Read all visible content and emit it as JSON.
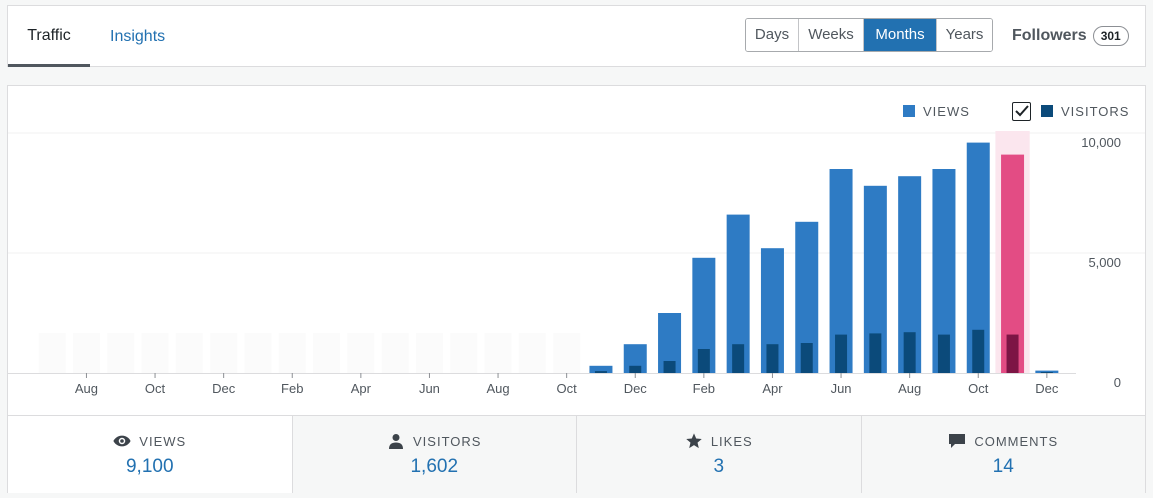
{
  "tabs": [
    {
      "label": "Traffic"
    },
    {
      "label": "Insights"
    }
  ],
  "periods": [
    {
      "label": "Days"
    },
    {
      "label": "Weeks"
    },
    {
      "label": "Months"
    },
    {
      "label": "Years"
    }
  ],
  "followers": {
    "label": "Followers",
    "count": "301"
  },
  "legend": {
    "views": "VIEWS",
    "visitors": "VISITORS"
  },
  "colors": {
    "accent": "#2271b1",
    "views_bar": "#2e7bc4",
    "visitors_bar": "#0b4a7a",
    "selected_views_bar": "#e34c84",
    "selected_visitors_bar": "#7d1545",
    "selected_highlight": "#fbe6ee"
  },
  "summary": [
    {
      "label": "VIEWS",
      "value": "9,100",
      "icon": "eye-icon"
    },
    {
      "label": "VISITORS",
      "value": "1,602",
      "icon": "person-icon"
    },
    {
      "label": "LIKES",
      "value": "3",
      "icon": "star-icon"
    },
    {
      "label": "COMMENTS",
      "value": "14",
      "icon": "comment-icon"
    }
  ],
  "chart_data": {
    "type": "bar",
    "y_ticks": [
      "10,000",
      "5,000",
      "0"
    ],
    "ylim": [
      0,
      10000
    ],
    "x_tick_labels": [
      "Aug",
      "Oct",
      "Dec",
      "Feb",
      "Apr",
      "Jun",
      "Aug",
      "Oct",
      "Dec",
      "Feb",
      "Apr",
      "Jun",
      "Aug",
      "Oct",
      "Dec"
    ],
    "selected_index": 28,
    "series": [
      {
        "name": "VIEWS",
        "values": [
          0,
          0,
          0,
          0,
          0,
          0,
          0,
          0,
          0,
          0,
          0,
          0,
          0,
          0,
          0,
          0,
          300,
          1200,
          2500,
          4800,
          6600,
          5200,
          6300,
          8500,
          7800,
          8200,
          8500,
          9600,
          9100,
          100
        ]
      },
      {
        "name": "VISITORS",
        "values": [
          0,
          0,
          0,
          0,
          0,
          0,
          0,
          0,
          0,
          0,
          0,
          0,
          0,
          0,
          0,
          0,
          80,
          300,
          500,
          1000,
          1200,
          1200,
          1250,
          1600,
          1650,
          1700,
          1600,
          1800,
          1602,
          40
        ]
      }
    ]
  }
}
